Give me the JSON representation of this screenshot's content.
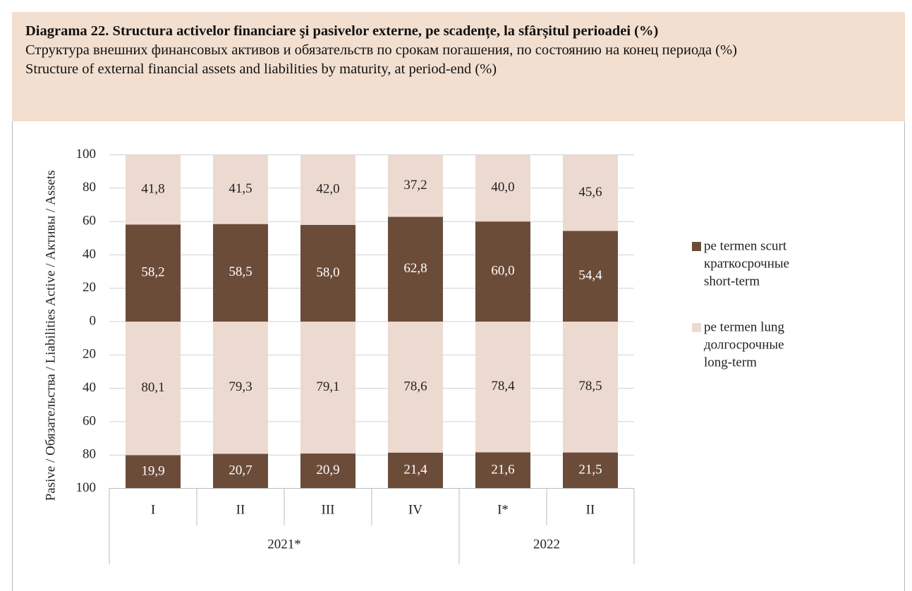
{
  "chart_data": {
    "type": "bar",
    "stacked": true,
    "title": "Diagrama 22. Structura activelor financiare şi pasivelor externe, pe scadențe, la sfârșitul perioadei (%)",
    "subtitle_ru": "Структура внешних финансовых активов и обязательств по срокам погашения, по состоянию на конец периода (%)",
    "subtitle_en": "Structure of external financial assets and liabilities by maturity, at period-end (%)",
    "categories": [
      "I",
      "II",
      "III",
      "IV",
      "I*",
      "II"
    ],
    "category_groups": [
      {
        "label": "2021*",
        "count": 4
      },
      {
        "label": "2022",
        "count": 2
      }
    ],
    "legend": [
      {
        "color": "#6b4c39",
        "lines": [
          "pe termen scurt",
          "краткосрочные",
          "short-term"
        ]
      },
      {
        "color": "#ecdad0",
        "lines": [
          "pe termen lung",
          "долгосрочные",
          "long-term"
        ]
      }
    ],
    "grid": true,
    "panels": [
      {
        "ylabel": "Active / Активы / Assets",
        "direction": "up",
        "ylim": [
          0,
          100
        ],
        "yticks": [
          0,
          20,
          40,
          60,
          80,
          100
        ],
        "series": [
          {
            "legend": 0,
            "values": [
              58.2,
              58.5,
              58.0,
              62.8,
              60.0,
              54.4
            ],
            "value_labels": [
              "58,2",
              "58,5",
              "58,0",
              "62,8",
              "60,0",
              "54,4"
            ]
          },
          {
            "legend": 1,
            "values": [
              41.8,
              41.5,
              42.0,
              37.2,
              40.0,
              45.6
            ],
            "value_labels": [
              "41,8",
              "41,5",
              "42,0",
              "37,2",
              "40,0",
              "45,6"
            ]
          }
        ]
      },
      {
        "ylabel": "Pasive / Обязательства / Liabilities",
        "direction": "down",
        "ylim": [
          0,
          100
        ],
        "yticks": [
          20,
          40,
          60,
          80,
          100
        ],
        "series": [
          {
            "legend": 1,
            "values": [
              80.1,
              79.3,
              79.1,
              78.6,
              78.4,
              78.5
            ],
            "value_labels": [
              "80,1",
              "79,3",
              "79,1",
              "78,6",
              "78,4",
              "78,5"
            ]
          },
          {
            "legend": 0,
            "values": [
              19.9,
              20.7,
              20.9,
              21.4,
              21.6,
              21.5
            ],
            "value_labels": [
              "19,9",
              "20,7",
              "20,9",
              "21,4",
              "21,6",
              "21,5"
            ]
          }
        ]
      }
    ]
  }
}
